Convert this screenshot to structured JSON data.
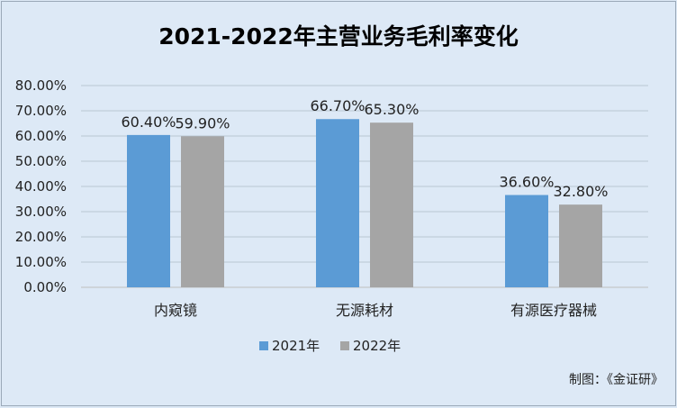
{
  "chart_data": {
    "type": "bar",
    "title": "2021-2022年主营业务毛利率变化",
    "categories": [
      "内窥镜",
      "无源耗材",
      "有源医疗器械"
    ],
    "series": [
      {
        "name": "2021年",
        "values": [
          60.4,
          66.7,
          36.6
        ],
        "labels": [
          "60.40%",
          "66.70%",
          "36.60%"
        ],
        "color": "#5b9bd5"
      },
      {
        "name": "2022年",
        "values": [
          59.9,
          65.3,
          32.8
        ],
        "labels": [
          "59.90%",
          "65.30%",
          "32.80%"
        ],
        "color": "#a5a5a5"
      }
    ],
    "y_ticks": [
      "0.00%",
      "10.00%",
      "20.00%",
      "30.00%",
      "40.00%",
      "50.00%",
      "60.00%",
      "70.00%",
      "80.00%"
    ],
    "ylim": [
      0,
      80
    ],
    "y_unit": "%",
    "grid": true,
    "legend_position": "bottom",
    "xlabel": "",
    "ylabel": ""
  },
  "source_note": "制图：《金证研》",
  "colors": {
    "background": "#dde9f6",
    "grid": "#b9c6d3",
    "axis": "#bfbfbf"
  }
}
